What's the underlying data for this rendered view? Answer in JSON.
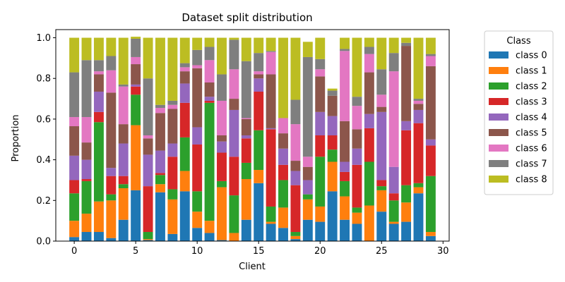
{
  "chart_data": {
    "type": "bar",
    "stacked": true,
    "title": "Dataset split distribution",
    "xlabel": "Client",
    "ylabel": "Proportion",
    "xlim": [
      -1.5,
      30.5
    ],
    "ylim": [
      0,
      1.04
    ],
    "x_ticks": [
      0,
      5,
      10,
      15,
      20,
      25,
      30
    ],
    "y_ticks": [
      0.0,
      0.2,
      0.4,
      0.6,
      0.8,
      1.0
    ],
    "y_tick_labels": [
      "0.0",
      "0.2",
      "0.4",
      "0.6",
      "0.8",
      "1.0"
    ],
    "grid": false,
    "legend": {
      "title": "Class",
      "placement": "outside-right"
    },
    "categories": [
      0,
      1,
      2,
      3,
      4,
      5,
      6,
      7,
      8,
      9,
      10,
      11,
      12,
      13,
      14,
      15,
      16,
      17,
      18,
      19,
      20,
      21,
      22,
      23,
      24,
      25,
      26,
      27,
      28,
      29
    ],
    "series": [
      {
        "name": "class 0",
        "color": "#1f77b4",
        "values": [
          0.02,
          0.045,
          0.045,
          0.015,
          0.105,
          0.25,
          0.005,
          0.24,
          0.035,
          0.245,
          0.065,
          0.04,
          0.005,
          0.0,
          0.105,
          0.285,
          0.085,
          0.065,
          0.01,
          0.105,
          0.095,
          0.245,
          0.105,
          0.085,
          0.0,
          0.145,
          0.085,
          0.095,
          0.235,
          0.025
        ]
      },
      {
        "name": "class 1",
        "color": "#ff7f0e",
        "values": [
          0.08,
          0.09,
          0.15,
          0.185,
          0.155,
          0.32,
          0.005,
          0.04,
          0.17,
          0.1,
          0.08,
          0.06,
          0.26,
          0.04,
          0.2,
          0.065,
          0.01,
          0.1,
          0.015,
          0.1,
          0.075,
          0.145,
          0.115,
          0.055,
          0.175,
          0.105,
          0.01,
          0.095,
          0.03,
          0.02
        ]
      },
      {
        "name": "class 2",
        "color": "#2ca02c",
        "values": [
          0.135,
          0.16,
          0.39,
          0.03,
          0.02,
          0.15,
          0.035,
          0.045,
          0.05,
          0.165,
          0.1,
          0.58,
          0.03,
          0.185,
          0.08,
          0.195,
          0.075,
          0.135,
          0.02,
          0.025,
          0.245,
          0.06,
          0.075,
          0.025,
          0.215,
          0.02,
          0.105,
          0.085,
          0.02,
          0.275
        ]
      },
      {
        "name": "class 3",
        "color": "#d62728",
        "values": [
          0.065,
          0.01,
          0.05,
          0.09,
          0.04,
          0.04,
          0.225,
          0.01,
          0.16,
          0.17,
          0.23,
          0.01,
          0.14,
          0.19,
          0.12,
          0.19,
          0.38,
          0.075,
          0.23,
          0.0,
          0.105,
          0.07,
          0.045,
          0.21,
          0.165,
          0.03,
          0.035,
          0.27,
          0.295,
          0.15
        ]
      },
      {
        "name": "class 4",
        "color": "#9467bd",
        "values": [
          0.12,
          0.095,
          0.1,
          0.04,
          0.16,
          0.01,
          0.155,
          0.11,
          0.065,
          0.095,
          0.085,
          0.02,
          0.055,
          0.23,
          0.015,
          0.065,
          0.005,
          0.08,
          0.07,
          0.07,
          0.115,
          0.095,
          0.05,
          0.08,
          0.07,
          0.335,
          0.13,
          0.045,
          0.065,
          0.03
        ]
      },
      {
        "name": "class 5",
        "color": "#8c564b",
        "values": [
          0.145,
          0.085,
          0.085,
          0.37,
          0.095,
          0.1,
          0.08,
          0.185,
          0.17,
          0.06,
          0.29,
          0.07,
          0.03,
          0.055,
          0.08,
          0.02,
          0.265,
          0.075,
          0.05,
          0.065,
          0.175,
          0.1,
          0.2,
          0.095,
          0.205,
          0.025,
          0.0,
          0.37,
          0.03,
          0.36
        ]
      },
      {
        "name": "class 6",
        "color": "#e377c2",
        "values": [
          0.045,
          0.125,
          0.015,
          0.11,
          0.185,
          0.035,
          0.015,
          0.025,
          0.02,
          0.02,
          0.015,
          0.11,
          0.17,
          0.145,
          0.005,
          0.015,
          0.11,
          0.075,
          0.18,
          0.05,
          0.035,
          0.0,
          0.345,
          0.115,
          0.09,
          0.06,
          0.47,
          0.0,
          0.015,
          0.05
        ]
      },
      {
        "name": "class 7",
        "color": "#7f7f7f",
        "values": [
          0.22,
          0.28,
          0.055,
          0.07,
          0.01,
          0.09,
          0.28,
          0.015,
          0.02,
          0.02,
          0.075,
          0.065,
          0.13,
          0.145,
          0.28,
          0.09,
          0.005,
          0.0,
          0.12,
          0.49,
          0.05,
          0.025,
          0.01,
          0.045,
          0.035,
          0.125,
          0.09,
          0.015,
          0.01,
          0.01
        ]
      },
      {
        "name": "class 8",
        "color": "#bcbd22",
        "values": [
          0.17,
          0.11,
          0.11,
          0.09,
          0.23,
          0.01,
          0.2,
          0.33,
          0.31,
          0.125,
          0.06,
          0.045,
          0.18,
          0.01,
          0.115,
          0.075,
          0.065,
          0.395,
          0.305,
          0.075,
          0.105,
          0.01,
          0.055,
          0.29,
          0.045,
          0.155,
          0.075,
          0.025,
          0.3,
          0.08
        ]
      }
    ]
  }
}
